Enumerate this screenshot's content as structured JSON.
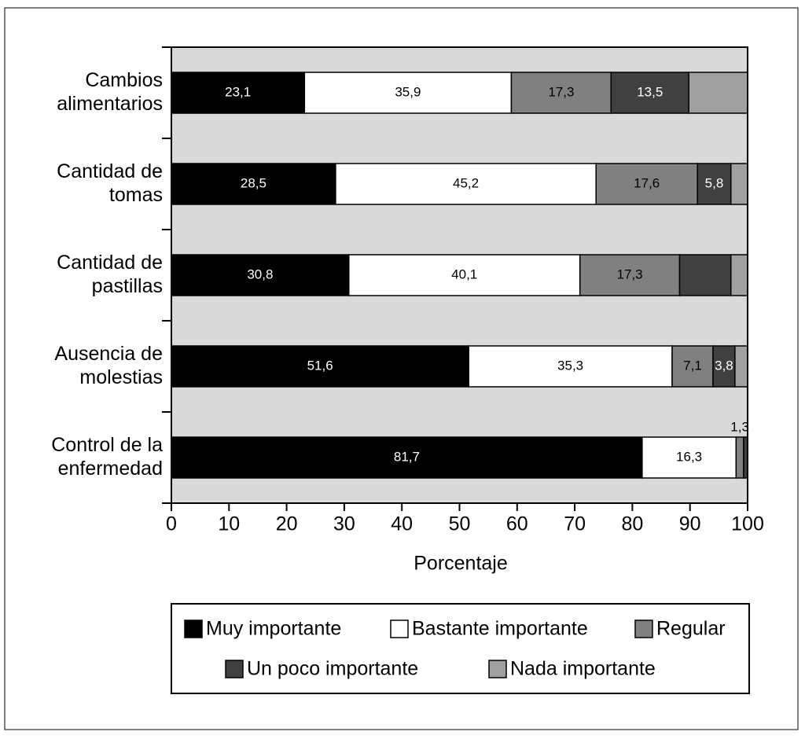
{
  "chart_data": {
    "type": "stacked-bar-horizontal",
    "categories": [
      "Cambios\nalimentarios",
      "Cantidad de\ntomas",
      "Cantidad de\npastillas",
      "Ausencia de\nmolestias",
      "Control de la\nenfermedad"
    ],
    "series": [
      {
        "name": "Muy importante",
        "color": "#000000",
        "values": [
          23.1,
          28.5,
          30.8,
          51.6,
          81.7
        ],
        "value_labels": [
          "23,1",
          "28,5",
          "30,8",
          "51,6",
          "81,7"
        ]
      },
      {
        "name": "Bastante importante",
        "color": "#ffffff",
        "values": [
          35.9,
          45.2,
          40.1,
          35.3,
          16.3
        ],
        "value_labels": [
          "35,9",
          "45,2",
          "40,1",
          "35,3",
          "16,3"
        ]
      },
      {
        "name": "Regular",
        "color": "#808080",
        "values": [
          17.3,
          17.6,
          17.3,
          7.1,
          1.3
        ],
        "value_labels": [
          "17,3",
          "17,6",
          "17,3",
          "7,1",
          "1,3"
        ]
      },
      {
        "name": "Un poco importante",
        "color": "#404040",
        "values": [
          13.5,
          5.8,
          8.9,
          3.8,
          0.7
        ],
        "value_labels": [
          "13,5",
          "5,8",
          null,
          "3,8",
          null
        ]
      },
      {
        "name": "Nada importante",
        "color": "#a0a0a0",
        "values": [
          10.2,
          2.9,
          2.9,
          2.2,
          0
        ],
        "value_labels": [
          null,
          null,
          null,
          null,
          null
        ]
      }
    ],
    "xlabel": "Porcentaje",
    "xlim": [
      0,
      100
    ],
    "xticks": [
      0,
      10,
      20,
      30,
      40,
      50,
      60,
      70,
      80,
      90,
      100
    ],
    "background": "#d9d9d9"
  }
}
